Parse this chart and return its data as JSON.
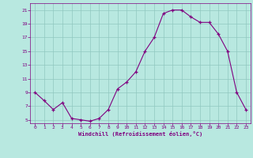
{
  "x": [
    0,
    1,
    2,
    3,
    4,
    5,
    6,
    7,
    8,
    9,
    10,
    11,
    12,
    13,
    14,
    15,
    16,
    17,
    18,
    19,
    20,
    21,
    22,
    23
  ],
  "y": [
    9.0,
    7.8,
    6.5,
    7.5,
    5.2,
    5.0,
    4.8,
    5.2,
    6.5,
    9.5,
    10.5,
    12.0,
    15.0,
    17.0,
    20.5,
    21.0,
    21.0,
    20.0,
    19.2,
    19.2,
    17.5,
    15.0,
    9.0,
    6.5
  ],
  "line_color": "#800080",
  "marker_color": "#800080",
  "bg_color": "#b8e8e0",
  "grid_color": "#90c8c0",
  "xlabel": "Windchill (Refroidissement éolien,°C)",
  "xlabel_color": "#800080",
  "tick_color": "#800080",
  "ylim": [
    4.5,
    22.0
  ],
  "xlim": [
    -0.5,
    23.5
  ],
  "yticks": [
    5,
    7,
    9,
    11,
    13,
    15,
    17,
    19,
    21
  ],
  "xticks": [
    0,
    1,
    2,
    3,
    4,
    5,
    6,
    7,
    8,
    9,
    10,
    11,
    12,
    13,
    14,
    15,
    16,
    17,
    18,
    19,
    20,
    21,
    22,
    23
  ]
}
